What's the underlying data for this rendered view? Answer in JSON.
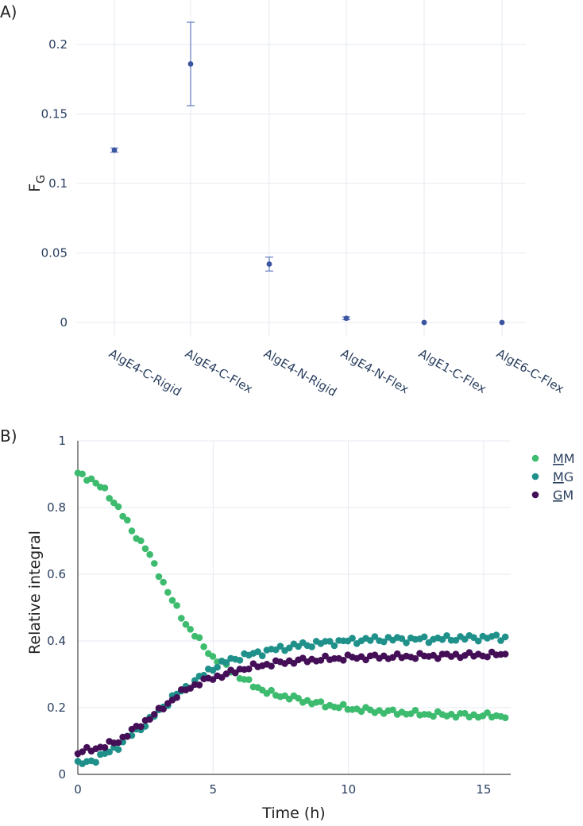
{
  "chart_data": [
    {
      "panel_label": "A)",
      "type": "scatter",
      "ylabel": "F",
      "ylabel_subscript": "G",
      "ylim": [
        0,
        0.225
      ],
      "yticks": [
        0,
        0.05,
        0.1,
        0.15,
        0.2
      ],
      "ytick_labels": [
        "0",
        "0.05",
        "0.1",
        "0.15",
        "0.2"
      ],
      "categories": [
        "AlgE4-C-Rigid",
        "AlgE4-C-Flex",
        "AlgE4-N-Rigid",
        "AlgE4-N-Flex",
        "AlgE1-C-Flex",
        "AlgE6-C-Flex"
      ],
      "values": [
        0.124,
        0.186,
        0.042,
        0.003,
        0.0,
        0.0
      ],
      "errors": [
        0.0015,
        0.03,
        0.005,
        0.001,
        0.0,
        0.0
      ],
      "color": "#3b55a0"
    },
    {
      "panel_label": "B)",
      "type": "scatter",
      "xlabel": "Time (h)",
      "ylabel": "Relative integral",
      "xlim": [
        0,
        16
      ],
      "ylim": [
        0,
        1
      ],
      "xticks": [
        0,
        5,
        10,
        15
      ],
      "xtick_labels": [
        "0",
        "5",
        "10",
        "15"
      ],
      "yticks": [
        0,
        0.2,
        0.4,
        0.6,
        0.8,
        1
      ],
      "ytick_labels": [
        "0",
        "0.2",
        "0.4",
        "0.6",
        "0.8",
        "1"
      ],
      "legend_position": "top-right",
      "series": [
        {
          "name": "MM",
          "underline_char": "M",
          "rest": "M",
          "color": "#3dbb6e",
          "knots": [
            [
              0,
              0.9
            ],
            [
              0.5,
              0.885
            ],
            [
              1,
              0.85
            ],
            [
              1.5,
              0.8
            ],
            [
              2,
              0.73
            ],
            [
              2.5,
              0.68
            ],
            [
              3,
              0.6
            ],
            [
              3.5,
              0.52
            ],
            [
              4,
              0.45
            ],
            [
              4.5,
              0.4
            ],
            [
              5,
              0.35
            ],
            [
              5.5,
              0.325
            ],
            [
              6,
              0.29
            ],
            [
              6.5,
              0.268
            ],
            [
              7,
              0.245
            ],
            [
              8,
              0.228
            ],
            [
              9,
              0.21
            ],
            [
              10,
              0.198
            ],
            [
              11,
              0.19
            ],
            [
              12,
              0.185
            ],
            [
              13,
              0.18
            ],
            [
              14,
              0.178
            ],
            [
              15,
              0.176
            ],
            [
              16,
              0.175
            ]
          ],
          "noise": 0.006
        },
        {
          "name": "MG",
          "underline_char": "M",
          "rest": "G",
          "color": "#1f918a",
          "knots": [
            [
              0,
              0.03
            ],
            [
              0.5,
              0.04
            ],
            [
              1,
              0.06
            ],
            [
              1.5,
              0.085
            ],
            [
              2,
              0.12
            ],
            [
              2.5,
              0.15
            ],
            [
              3,
              0.19
            ],
            [
              3.5,
              0.23
            ],
            [
              4,
              0.26
            ],
            [
              4.5,
              0.29
            ],
            [
              5,
              0.32
            ],
            [
              5.5,
              0.338
            ],
            [
              6,
              0.352
            ],
            [
              7,
              0.37
            ],
            [
              8,
              0.385
            ],
            [
              9,
              0.394
            ],
            [
              10,
              0.4
            ],
            [
              11,
              0.405
            ],
            [
              12,
              0.405
            ],
            [
              13,
              0.405
            ],
            [
              14,
              0.408
            ],
            [
              15,
              0.41
            ],
            [
              16,
              0.412
            ]
          ],
          "noise": 0.007
        },
        {
          "name": "GM",
          "underline_char": "G",
          "rest": "M",
          "color": "#440f57",
          "knots": [
            [
              0,
              0.065
            ],
            [
              0.5,
              0.075
            ],
            [
              1,
              0.085
            ],
            [
              1.5,
              0.1
            ],
            [
              2,
              0.13
            ],
            [
              2.5,
              0.16
            ],
            [
              3,
              0.19
            ],
            [
              3.5,
              0.225
            ],
            [
              4,
              0.255
            ],
            [
              4.5,
              0.275
            ],
            [
              5,
              0.29
            ],
            [
              5.5,
              0.3
            ],
            [
              6,
              0.315
            ],
            [
              7,
              0.33
            ],
            [
              8,
              0.34
            ],
            [
              9,
              0.345
            ],
            [
              10,
              0.35
            ],
            [
              11,
              0.352
            ],
            [
              12,
              0.353
            ],
            [
              13,
              0.355
            ],
            [
              14,
              0.357
            ],
            [
              15,
              0.358
            ],
            [
              16,
              0.36
            ]
          ],
          "noise": 0.006
        }
      ],
      "points_per_series": 96
    }
  ]
}
